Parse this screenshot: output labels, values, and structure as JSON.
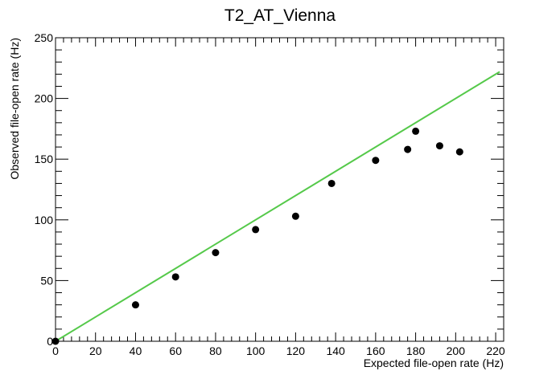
{
  "chart_data": {
    "type": "scatter",
    "title": "T2_AT_Vienna",
    "xlabel": "Expected file-open rate (Hz)",
    "ylabel": "Observed file-open rate (Hz)",
    "xlim": [
      0,
      224
    ],
    "ylim": [
      0,
      250
    ],
    "x_ticks": [
      "0",
      "20",
      "40",
      "60",
      "80",
      "100",
      "120",
      "140",
      "160",
      "180",
      "200",
      "220"
    ],
    "y_ticks": [
      "0",
      "50",
      "100",
      "150",
      "200",
      "250"
    ],
    "grid": false,
    "legend": "none",
    "series": [
      {
        "points": [
          {
            "x": 0,
            "y": 0
          },
          {
            "x": 40,
            "y": 30
          },
          {
            "x": 60,
            "y": 53
          },
          {
            "x": 80,
            "y": 73
          },
          {
            "x": 100,
            "y": 92
          },
          {
            "x": 120,
            "y": 103
          },
          {
            "x": 138,
            "y": 130
          },
          {
            "x": 160,
            "y": 149
          },
          {
            "x": 176,
            "y": 158
          },
          {
            "x": 180,
            "y": 173
          },
          {
            "x": 192,
            "y": 161
          },
          {
            "x": 202,
            "y": 156
          }
        ],
        "color": "#000000"
      }
    ],
    "reference_line": {
      "from": {
        "x": 0,
        "y": 0
      },
      "to": {
        "x": 222,
        "y": 222
      },
      "color": "#55c94a"
    }
  }
}
